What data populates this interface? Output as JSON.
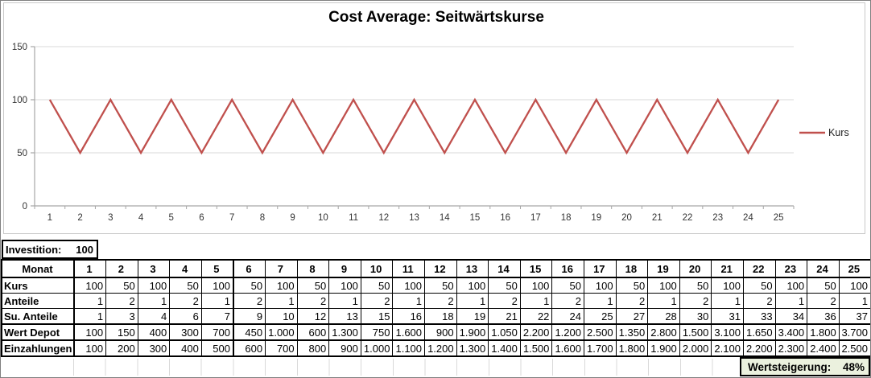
{
  "chart": {
    "title": "Cost Average: Seitwärtskurse",
    "legend_label": "Kurs",
    "line_color": "#C0504D",
    "grid_color": "#D9D9D9",
    "axis_color": "#A6A6A6"
  },
  "chart_data": {
    "type": "line",
    "title": "Cost Average: Seitwärtskurse",
    "x": [
      1,
      2,
      3,
      4,
      5,
      6,
      7,
      8,
      9,
      10,
      11,
      12,
      13,
      14,
      15,
      16,
      17,
      18,
      19,
      20,
      21,
      22,
      23,
      24,
      25
    ],
    "series": [
      {
        "name": "Kurs",
        "values": [
          100,
          50,
          100,
          50,
          100,
          50,
          100,
          50,
          100,
          50,
          100,
          50,
          100,
          50,
          100,
          50,
          100,
          50,
          100,
          50,
          100,
          50,
          100,
          50,
          100
        ]
      }
    ],
    "xlabel": "",
    "ylabel": "",
    "ylim": [
      0,
      150
    ],
    "yticks": [
      0,
      50,
      100,
      150
    ],
    "grid": true,
    "legend_position": "right"
  },
  "investition": {
    "label": "Investition:",
    "value": "100"
  },
  "table": {
    "corner_label": "Monat",
    "months": [
      "1",
      "2",
      "3",
      "4",
      "5",
      "6",
      "7",
      "8",
      "9",
      "10",
      "11",
      "12",
      "13",
      "14",
      "15",
      "16",
      "17",
      "18",
      "19",
      "20",
      "21",
      "22",
      "23",
      "24",
      "25"
    ],
    "rows": [
      {
        "label": "Kurs",
        "values": [
          "100",
          "50",
          "100",
          "50",
          "100",
          "50",
          "100",
          "50",
          "100",
          "50",
          "100",
          "50",
          "100",
          "50",
          "100",
          "50",
          "100",
          "50",
          "100",
          "50",
          "100",
          "50",
          "100",
          "50",
          "100"
        ]
      },
      {
        "label": "Anteile",
        "values": [
          "1",
          "2",
          "1",
          "2",
          "1",
          "2",
          "1",
          "2",
          "1",
          "2",
          "1",
          "2",
          "1",
          "2",
          "1",
          "2",
          "1",
          "2",
          "1",
          "2",
          "1",
          "2",
          "1",
          "2",
          "1"
        ]
      },
      {
        "label": "Su. Anteile",
        "values": [
          "1",
          "3",
          "4",
          "6",
          "7",
          "9",
          "10",
          "12",
          "13",
          "15",
          "16",
          "18",
          "19",
          "21",
          "22",
          "24",
          "25",
          "27",
          "28",
          "30",
          "31",
          "33",
          "34",
          "36",
          "37"
        ]
      },
      {
        "label": "Wert Depot",
        "values": [
          "100",
          "150",
          "400",
          "300",
          "700",
          "450",
          "1.000",
          "600",
          "1.300",
          "750",
          "1.600",
          "900",
          "1.900",
          "1.050",
          "2.200",
          "1.200",
          "2.500",
          "1.350",
          "2.800",
          "1.500",
          "3.100",
          "1.650",
          "3.400",
          "1.800",
          "3.700"
        ]
      },
      {
        "label": "Einzahlungen",
        "values": [
          "100",
          "200",
          "300",
          "400",
          "500",
          "600",
          "700",
          "800",
          "900",
          "1.000",
          "1.100",
          "1.200",
          "1.300",
          "1.400",
          "1.500",
          "1.600",
          "1.700",
          "1.800",
          "1.900",
          "2.000",
          "2.100",
          "2.200",
          "2.300",
          "2.400",
          "2.500"
        ]
      }
    ]
  },
  "summary": {
    "label": "Wertsteigerung:",
    "value": "48%",
    "fill_color": "#EBF1DE"
  }
}
